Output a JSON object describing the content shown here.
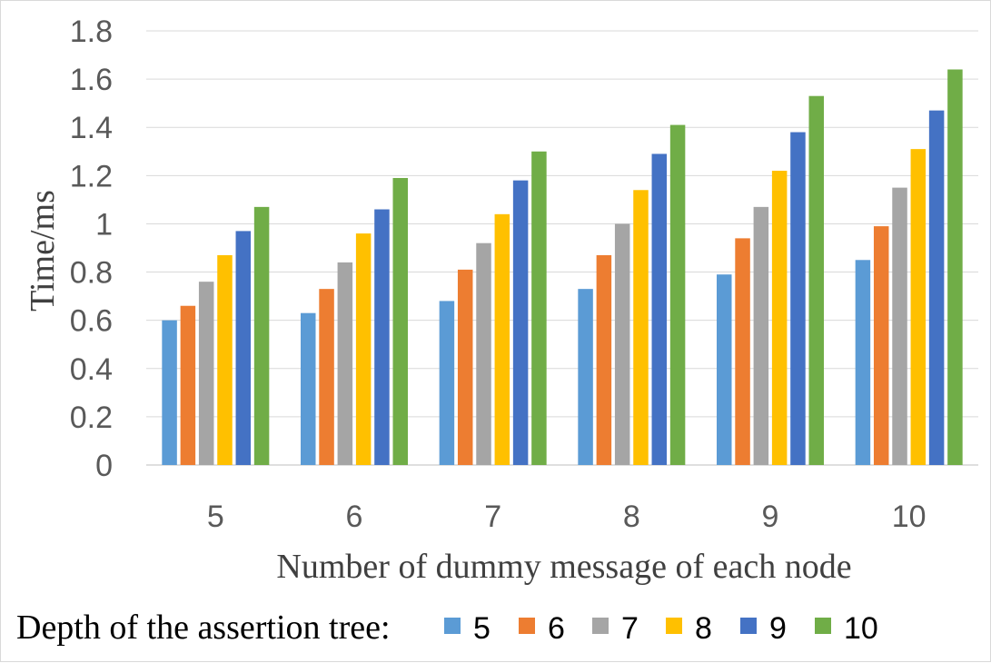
{
  "chart_data": {
    "type": "bar",
    "xlabel": "Number of dummy message of each node",
    "ylabel": "Time/ms",
    "ylim": [
      0,
      1.8
    ],
    "yticks": [
      "0",
      "0.2",
      "0.4",
      "0.6",
      "0.8",
      "1",
      "1.2",
      "1.4",
      "1.6",
      "1.8"
    ],
    "ytick_values": [
      0,
      0.2,
      0.4,
      0.6,
      0.8,
      1.0,
      1.2,
      1.4,
      1.6,
      1.8
    ],
    "grid": true,
    "legend_position": "bottom",
    "legend_title": "Depth of the assertion tree:",
    "categories": [
      "5",
      "6",
      "7",
      "8",
      "9",
      "10"
    ],
    "series": [
      {
        "name": "5",
        "color": "#5b9bd5",
        "values": [
          0.6,
          0.63,
          0.68,
          0.73,
          0.79,
          0.85
        ]
      },
      {
        "name": "6",
        "color": "#ed7d31",
        "values": [
          0.66,
          0.73,
          0.81,
          0.87,
          0.94,
          0.99
        ]
      },
      {
        "name": "7",
        "color": "#a5a5a5",
        "values": [
          0.76,
          0.84,
          0.92,
          1.0,
          1.07,
          1.15
        ]
      },
      {
        "name": "8",
        "color": "#ffc000",
        "values": [
          0.87,
          0.96,
          1.04,
          1.14,
          1.22,
          1.31
        ]
      },
      {
        "name": "9",
        "color": "#4472c4",
        "values": [
          0.97,
          1.06,
          1.18,
          1.29,
          1.38,
          1.47
        ]
      },
      {
        "name": "10",
        "color": "#70ad47",
        "values": [
          1.07,
          1.19,
          1.3,
          1.41,
          1.53,
          1.64
        ]
      }
    ]
  }
}
